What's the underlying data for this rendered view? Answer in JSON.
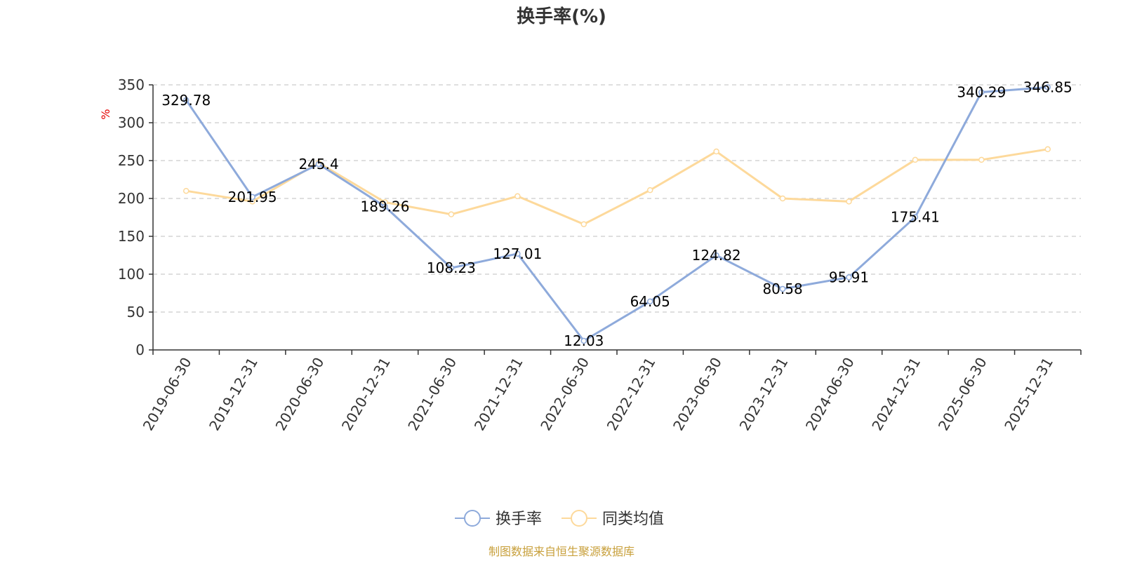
{
  "chart_data": {
    "type": "line",
    "title": "换手率(%)",
    "ylabel": "%",
    "ylim": [
      0,
      350
    ],
    "yticks": [
      0,
      50,
      100,
      150,
      200,
      250,
      300,
      350
    ],
    "categories": [
      "2019-06-30",
      "2019-12-31",
      "2020-06-30",
      "2020-12-31",
      "2021-06-30",
      "2021-12-31",
      "2022-06-30",
      "2022-12-31",
      "2023-06-30",
      "2023-12-31",
      "2024-06-30",
      "2024-12-31",
      "2025-06-30",
      "2025-12-31"
    ],
    "series": [
      {
        "name": "换手率",
        "color": "#8eaadb",
        "values": [
          329.78,
          201.95,
          245.4,
          189.26,
          108.23,
          127.01,
          12.03,
          64.05,
          124.82,
          80.58,
          95.91,
          175.41,
          340.29,
          346.85
        ],
        "labels": [
          "329.78",
          "201.95",
          "245.4",
          "189.26",
          "108.23",
          "127.01",
          "12.03",
          "64.05",
          "124.82",
          "80.58",
          "95.91",
          "175.41",
          "340.29",
          "346.85"
        ]
      },
      {
        "name": "同类均值",
        "color": "#fdd99b",
        "values": [
          210,
          196,
          247,
          195,
          179,
          203,
          166,
          211,
          262,
          200,
          196,
          251,
          251,
          265
        ]
      }
    ],
    "grid": true,
    "legend_position": "bottom"
  },
  "footer": {
    "source": "制图数据来自恒生聚源数据库"
  }
}
